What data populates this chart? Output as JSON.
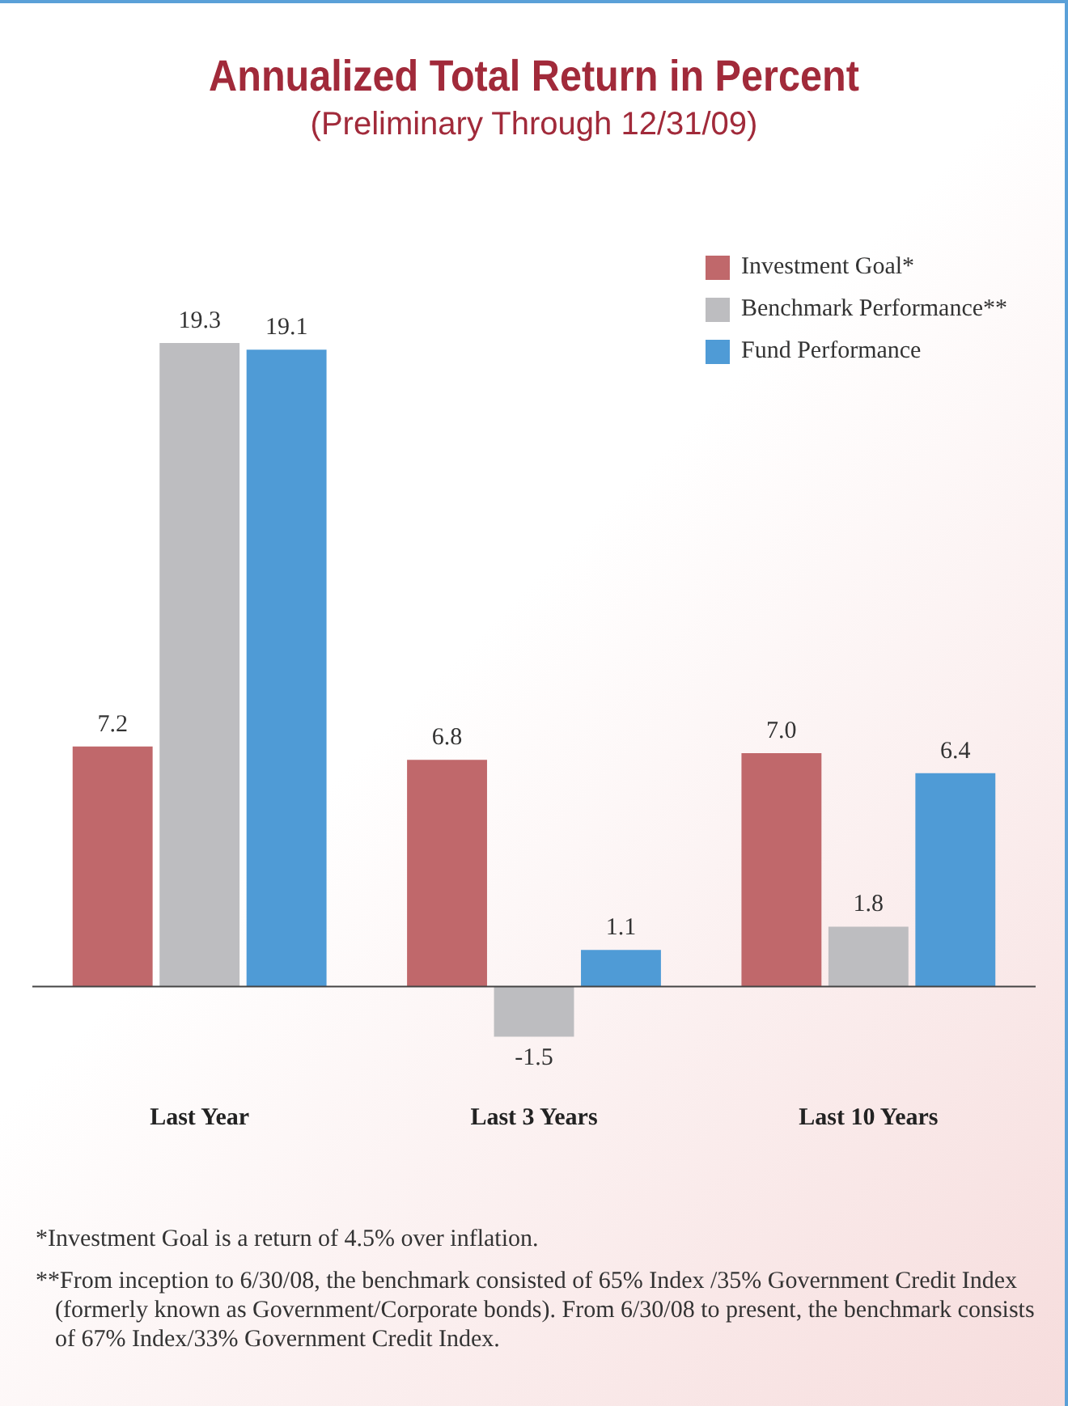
{
  "chart_data": {
    "type": "bar",
    "title": "Annualized Total Return in Percent",
    "subtitle": "(Preliminary Through 12/31/09)",
    "categories": [
      "Last Year",
      "Last 3 Years",
      "Last 10 Years"
    ],
    "series": [
      {
        "name": "Investment Goal*",
        "color": "#c0686b",
        "values": [
          7.2,
          6.8,
          7.0
        ],
        "value_labels": [
          "7.2",
          "6.8",
          "7.0"
        ]
      },
      {
        "name": "Benchmark Performance**",
        "color": "#bdbdc0",
        "values": [
          19.3,
          -1.5,
          1.8
        ],
        "value_labels": [
          "19.3",
          "-1.5",
          "1.8"
        ]
      },
      {
        "name": "Fund Performance",
        "color": "#4f9bd6",
        "values": [
          19.1,
          1.1,
          6.4
        ],
        "value_labels": [
          "19.1",
          "1.1",
          "6.4"
        ]
      }
    ],
    "legend": "top right",
    "grid": false,
    "annotations": [
      "*Investment Goal is a return of 4.5% over inflation.",
      "**From inception to 6/30/08, the benchmark consisted of 65% Index /35% Government Credit Index (formerly known as Government/Corporate bonds). From 6/30/08 to present, the benchmark consists of 67% Index/33% Government Credit Index."
    ]
  }
}
